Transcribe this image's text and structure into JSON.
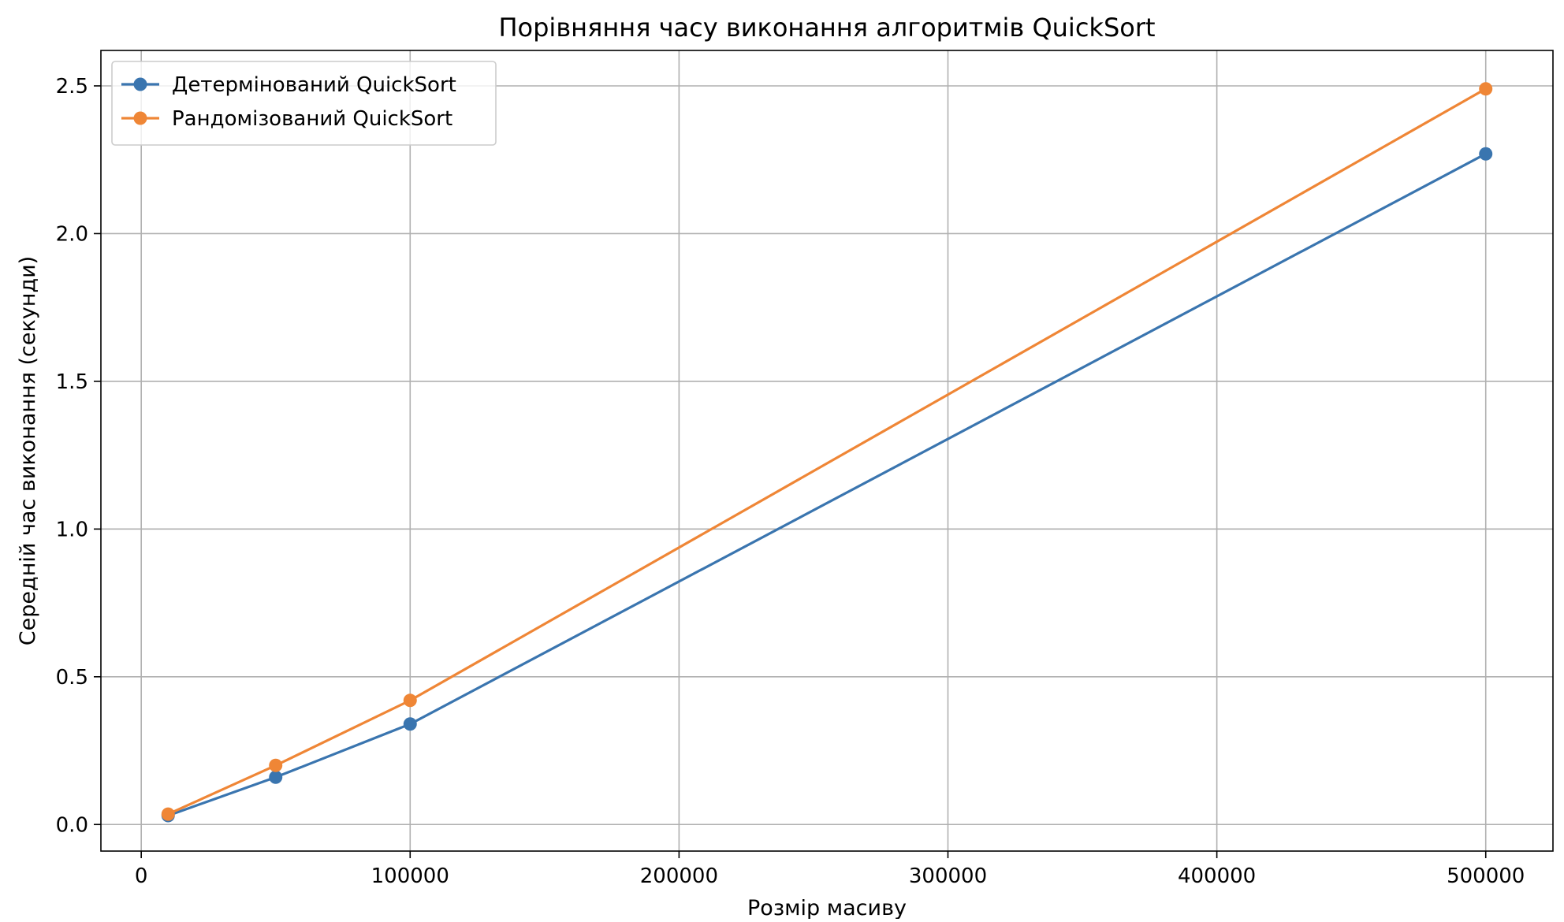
{
  "chart_data": {
    "type": "line",
    "title": "Порівняння часу виконання алгоритмів QuickSort",
    "xlabel": "Розмір масиву",
    "ylabel": "Середній час виконання (секунди)",
    "xlim": [
      -15000,
      525000
    ],
    "ylim": [
      -0.09,
      2.62
    ],
    "xticks": [
      0,
      100000,
      200000,
      300000,
      400000,
      500000
    ],
    "xtick_labels": [
      "0",
      "100000",
      "200000",
      "300000",
      "400000",
      "500000"
    ],
    "yticks": [
      0.0,
      0.5,
      1.0,
      1.5,
      2.0,
      2.5
    ],
    "ytick_labels": [
      "0.0",
      "0.5",
      "1.0",
      "1.5",
      "2.0",
      "2.5"
    ],
    "grid": true,
    "legend_position": "upper-left",
    "x": [
      10000,
      50000,
      100000,
      500000
    ],
    "series": [
      {
        "name": "Детермінований QuickSort",
        "color": "#3a75af",
        "marker": "circle",
        "values": [
          0.03,
          0.16,
          0.34,
          2.27
        ]
      },
      {
        "name": "Рандомізований QuickSort",
        "color": "#ef8636",
        "marker": "circle",
        "values": [
          0.035,
          0.2,
          0.42,
          2.49
        ]
      }
    ]
  }
}
